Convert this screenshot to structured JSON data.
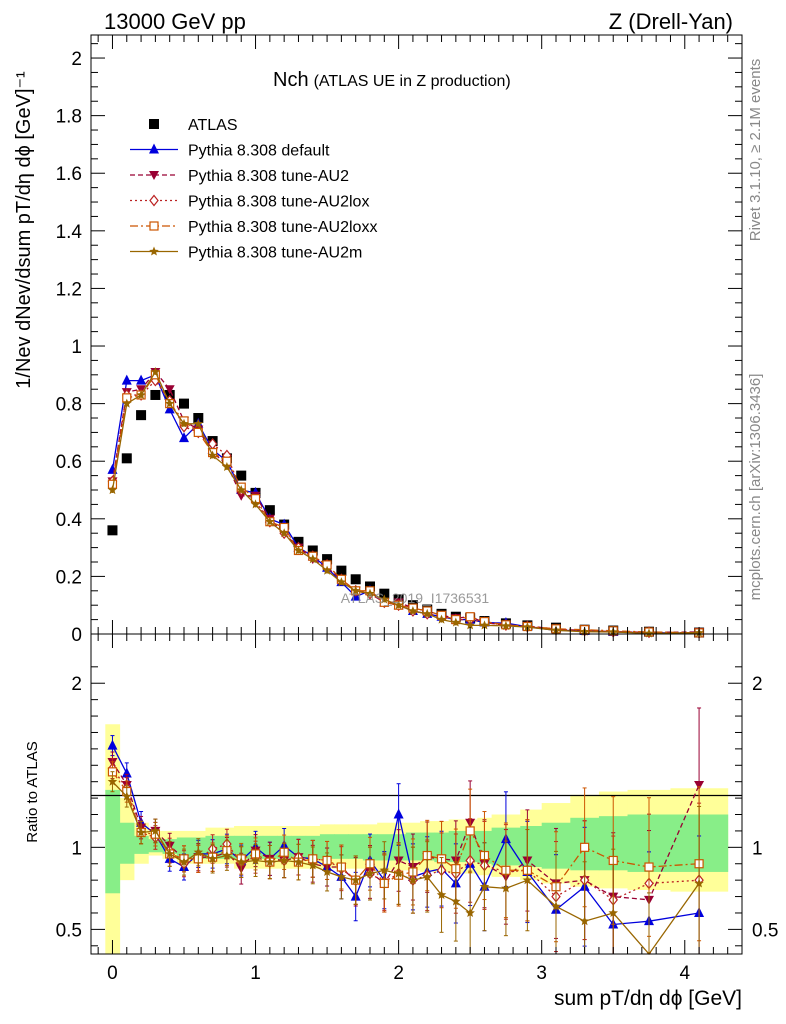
{
  "header": {
    "energy": "13000 GeV pp",
    "process": "Z (Drell-Yan)"
  },
  "side_labels": {
    "rivet": "Rivet 3.1.10, ≥ 2.1M events",
    "mcplots": "mcplots.cern.ch [arXiv:1306.3436]"
  },
  "watermark": "ATLAS_2019_I1736531",
  "chart_data": [
    {
      "type": "line",
      "title": "Nch",
      "subtitle": "(ATLAS UE in Z production)",
      "ylabel": "1/Nev dNev/dsum pT/dη dϕ [GeV]⁻¹",
      "xlim": [
        -0.15,
        4.4
      ],
      "ylim": [
        0,
        2.08
      ],
      "y_ticks": [
        "0",
        "0.2",
        "0.4",
        "0.6",
        "0.8",
        "1",
        "1.2",
        "1.4",
        "1.6",
        "1.8",
        "2"
      ],
      "legend_position": "top-left",
      "x": [
        0.0,
        0.1,
        0.2,
        0.3,
        0.4,
        0.5,
        0.6,
        0.7,
        0.8,
        0.9,
        1.0,
        1.1,
        1.2,
        1.3,
        1.4,
        1.5,
        1.6,
        1.7,
        1.8,
        1.9,
        2.0,
        2.1,
        2.2,
        2.3,
        2.4,
        2.5,
        2.6,
        2.75,
        2.9,
        3.1,
        3.3,
        3.5,
        3.75,
        4.1
      ],
      "series": [
        {
          "name": "ATLAS",
          "color": "#000000",
          "marker": "square-filled",
          "values": [
            0.36,
            0.61,
            0.76,
            0.83,
            0.83,
            0.8,
            0.75,
            0.67,
            0.61,
            0.55,
            0.49,
            0.43,
            0.38,
            0.32,
            0.29,
            0.26,
            0.22,
            0.19,
            0.165,
            0.14,
            0.12,
            0.1,
            0.085,
            0.07,
            0.06,
            0.055,
            0.045,
            0.037,
            0.03,
            0.022,
            0.015,
            0.012,
            0.008,
            0.005
          ]
        },
        {
          "name": "Pythia 8.308 default",
          "color": "#0000dd",
          "marker": "triangle-up-filled",
          "dash": "",
          "values": [
            0.57,
            0.88,
            0.88,
            0.9,
            0.78,
            0.68,
            0.73,
            0.64,
            0.6,
            0.5,
            0.49,
            0.4,
            0.38,
            0.3,
            0.27,
            0.23,
            0.18,
            0.13,
            0.15,
            0.11,
            0.1,
            0.08,
            0.07,
            0.06,
            0.05,
            0.05,
            0.04,
            0.038,
            0.025,
            0.013,
            0.011,
            0.007,
            0.005,
            0.003
          ]
        },
        {
          "name": "Pythia 8.308 tune-AU2",
          "color": "#990033",
          "marker": "triangle-down-filled",
          "dash": "5,3",
          "values": [
            0.53,
            0.84,
            0.85,
            0.91,
            0.85,
            0.74,
            0.71,
            0.63,
            0.59,
            0.48,
            0.48,
            0.4,
            0.35,
            0.3,
            0.26,
            0.23,
            0.19,
            0.15,
            0.14,
            0.11,
            0.11,
            0.09,
            0.08,
            0.065,
            0.055,
            0.06,
            0.04,
            0.03,
            0.028,
            0.017,
            0.012,
            0.008,
            0.006,
            0.007
          ]
        },
        {
          "name": "Pythia 8.308 tune-AU2lox",
          "color": "#bb2222",
          "marker": "diamond-open",
          "dash": "2,3",
          "values": [
            0.53,
            0.83,
            0.83,
            0.88,
            0.81,
            0.72,
            0.7,
            0.66,
            0.62,
            0.5,
            0.46,
            0.39,
            0.35,
            0.3,
            0.27,
            0.24,
            0.19,
            0.15,
            0.14,
            0.11,
            0.1,
            0.08,
            0.07,
            0.06,
            0.05,
            0.05,
            0.04,
            0.031,
            0.026,
            0.015,
            0.012,
            0.008,
            0.006,
            0.004
          ]
        },
        {
          "name": "Pythia 8.308 tune-AU2loxx",
          "color": "#cc5500",
          "marker": "square-open",
          "dash": "8,3,2,3",
          "values": [
            0.52,
            0.82,
            0.83,
            0.9,
            0.8,
            0.74,
            0.7,
            0.63,
            0.6,
            0.51,
            0.47,
            0.39,
            0.37,
            0.29,
            0.27,
            0.24,
            0.19,
            0.15,
            0.15,
            0.11,
            0.1,
            0.09,
            0.08,
            0.065,
            0.05,
            0.06,
            0.043,
            0.032,
            0.026,
            0.018,
            0.015,
            0.011,
            0.007,
            0.004
          ]
        },
        {
          "name": "Pythia 8.308 tune-AU2m",
          "color": "#996600",
          "marker": "star",
          "dash": "",
          "values": [
            0.5,
            0.8,
            0.83,
            0.91,
            0.8,
            0.73,
            0.73,
            0.62,
            0.58,
            0.5,
            0.45,
            0.39,
            0.35,
            0.29,
            0.26,
            0.22,
            0.18,
            0.15,
            0.14,
            0.12,
            0.1,
            0.08,
            0.07,
            0.05,
            0.04,
            0.03,
            0.03,
            0.028,
            0.024,
            0.013,
            0.008,
            0.007,
            0.002,
            0.004
          ]
        }
      ]
    },
    {
      "type": "line",
      "ylabel": "Ratio to ATLAS",
      "xlabel": "sum pT/dη dϕ [GeV]",
      "xlim": [
        -0.15,
        4.4
      ],
      "ylim": [
        0.35,
        2.3
      ],
      "x_ticks": [
        "0",
        "1",
        "2",
        "3",
        "4"
      ],
      "y_ticks": [
        "0.5",
        "1",
        "2"
      ],
      "reference_line": 1,
      "x_bins": [
        -0.05,
        0.05,
        0.15,
        0.25,
        0.35,
        0.45,
        0.55,
        0.65,
        0.75,
        0.85,
        0.95,
        1.05,
        1.15,
        1.25,
        1.35,
        1.45,
        1.55,
        1.65,
        1.75,
        1.85,
        1.95,
        2.05,
        2.15,
        2.25,
        2.35,
        2.45,
        2.55,
        2.65,
        2.85,
        3.0,
        3.2,
        3.4,
        3.6,
        3.9,
        4.3
      ],
      "band_2sigma": {
        "color": "#ffff99",
        "low": [
          0.3,
          0.8,
          0.9,
          0.95,
          0.93,
          0.9,
          0.9,
          0.9,
          0.9,
          0.87,
          0.87,
          0.87,
          0.87,
          0.87,
          0.87,
          0.87,
          0.87,
          0.87,
          0.87,
          0.86,
          0.86,
          0.86,
          0.85,
          0.85,
          0.84,
          0.84,
          0.83,
          0.82,
          0.8,
          0.78,
          0.76,
          0.75,
          0.74,
          0.73
        ],
        "high": [
          1.75,
          1.3,
          1.15,
          1.1,
          1.1,
          1.1,
          1.1,
          1.12,
          1.12,
          1.13,
          1.13,
          1.13,
          1.13,
          1.13,
          1.13,
          1.14,
          1.14,
          1.14,
          1.14,
          1.15,
          1.15,
          1.15,
          1.16,
          1.16,
          1.17,
          1.17,
          1.18,
          1.2,
          1.23,
          1.27,
          1.32,
          1.34,
          1.35,
          1.36
        ]
      },
      "band_1sigma": {
        "color": "#88ee88",
        "low": [
          0.72,
          0.9,
          0.96,
          0.97,
          0.96,
          0.93,
          0.93,
          0.93,
          0.93,
          0.93,
          0.93,
          0.93,
          0.93,
          0.93,
          0.93,
          0.93,
          0.93,
          0.93,
          0.92,
          0.92,
          0.92,
          0.92,
          0.92,
          0.91,
          0.91,
          0.91,
          0.9,
          0.89,
          0.88,
          0.87,
          0.86,
          0.86,
          0.85,
          0.85
        ],
        "high": [
          1.35,
          1.15,
          1.07,
          1.05,
          1.05,
          1.06,
          1.06,
          1.07,
          1.07,
          1.07,
          1.07,
          1.07,
          1.07,
          1.07,
          1.07,
          1.08,
          1.08,
          1.08,
          1.08,
          1.08,
          1.08,
          1.09,
          1.09,
          1.09,
          1.1,
          1.1,
          1.1,
          1.12,
          1.13,
          1.15,
          1.18,
          1.19,
          1.2,
          1.2
        ]
      },
      "x": [
        0.0,
        0.1,
        0.2,
        0.3,
        0.4,
        0.5,
        0.6,
        0.7,
        0.8,
        0.9,
        1.0,
        1.1,
        1.2,
        1.3,
        1.4,
        1.5,
        1.6,
        1.7,
        1.8,
        1.9,
        2.0,
        2.1,
        2.2,
        2.3,
        2.4,
        2.5,
        2.6,
        2.75,
        2.9,
        3.1,
        3.3,
        3.5,
        3.75,
        4.1
      ],
      "series": [
        {
          "name": "Pythia 8.308 default",
          "color": "#0000dd",
          "marker": "triangle-up-filled",
          "dash": "",
          "values": [
            1.62,
            1.45,
            1.15,
            1.08,
            0.93,
            0.88,
            0.96,
            0.96,
            0.99,
            0.92,
            1.0,
            0.93,
            1.01,
            0.94,
            0.93,
            0.88,
            0.82,
            0.7,
            0.92,
            0.8,
            1.2,
            0.82,
            0.85,
            0.87,
            0.78,
            0.9,
            0.76,
            1.05,
            0.85,
            0.62,
            0.76,
            0.53,
            0.55,
            0.6
          ]
        },
        {
          "name": "Pythia 8.308 tune-AU2",
          "color": "#990033",
          "marker": "triangle-down-filled",
          "dash": "5,3",
          "values": [
            1.52,
            1.38,
            1.12,
            1.1,
            1.01,
            0.93,
            0.94,
            0.94,
            0.97,
            0.87,
            0.98,
            0.93,
            0.92,
            0.94,
            0.9,
            0.88,
            0.88,
            0.79,
            0.85,
            0.78,
            0.92,
            0.88,
            0.94,
            0.93,
            0.92,
            1.15,
            0.9,
            0.82,
            0.92,
            0.78,
            0.8,
            0.7,
            0.68,
            1.38
          ]
        },
        {
          "name": "Pythia 8.308 tune-AU2lox",
          "color": "#bb2222",
          "marker": "diamond-open",
          "dash": "2,3",
          "values": [
            1.48,
            1.36,
            1.09,
            1.06,
            0.98,
            0.9,
            0.93,
            0.99,
            1.02,
            0.91,
            0.94,
            0.91,
            0.92,
            0.94,
            0.93,
            0.92,
            0.87,
            0.8,
            0.84,
            0.79,
            0.84,
            0.8,
            0.83,
            0.86,
            0.84,
            0.92,
            0.89,
            0.85,
            0.86,
            0.7,
            0.8,
            0.68,
            0.78,
            0.8
          ]
        },
        {
          "name": "Pythia 8.308 tune-AU2loxx",
          "color": "#cc5500",
          "marker": "square-open",
          "dash": "8,3,2,3",
          "values": [
            1.46,
            1.34,
            1.09,
            1.08,
            0.96,
            0.93,
            0.93,
            0.94,
            0.98,
            0.93,
            0.96,
            0.91,
            0.97,
            0.91,
            0.93,
            0.92,
            0.88,
            0.8,
            0.9,
            0.78,
            0.83,
            0.85,
            0.95,
            0.93,
            0.87,
            1.1,
            0.95,
            0.86,
            0.86,
            0.76,
            1.0,
            0.92,
            0.88,
            0.9
          ]
        },
        {
          "name": "Pythia 8.308 tune-AU2m",
          "color": "#996600",
          "marker": "star",
          "dash": "",
          "values": [
            1.4,
            1.31,
            1.09,
            1.1,
            0.96,
            0.91,
            0.97,
            0.93,
            0.95,
            0.91,
            0.92,
            0.91,
            0.92,
            0.91,
            0.89,
            0.85,
            0.82,
            0.8,
            0.84,
            0.86,
            0.84,
            0.8,
            0.82,
            0.71,
            0.67,
            0.6,
            0.76,
            0.75,
            0.8,
            0.64,
            0.55,
            0.6,
            0.3,
            0.78
          ]
        }
      ]
    }
  ]
}
